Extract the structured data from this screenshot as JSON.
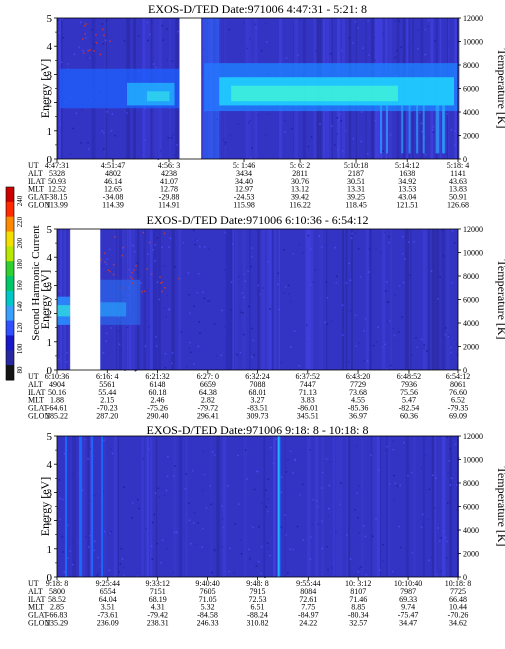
{
  "figure": {
    "colorbar": {
      "label": "Second Harmonic Current",
      "ticks": [
        "240",
        "220",
        "200",
        "180",
        "160",
        "140",
        "120",
        "100",
        "80"
      ],
      "colors": [
        "#cc0000",
        "#ff2a00",
        "#ff8a00",
        "#f4e000",
        "#b8e800",
        "#30d030",
        "#00c86a",
        "#00c8c8",
        "#3aa0ff",
        "#3050ff",
        "#1818c8",
        "#2828a0",
        "#141414"
      ]
    }
  },
  "chart_data": [
    {
      "type": "heatmap",
      "title": "EXOS-D/TED   Date:971006  4:47:31 - 5:21: 8",
      "ylabel": "Energy [eV]",
      "y2label": "Temperature [K]",
      "ylim": [
        0,
        5
      ],
      "y2lim": [
        0,
        12000
      ],
      "yticks": [
        "0",
        "1",
        "2",
        "3",
        "4",
        "5"
      ],
      "y2ticks": [
        "0",
        "2000",
        "4000",
        "6000",
        "8000",
        "10000",
        "12000"
      ],
      "data_gap": {
        "start": "4:56:51",
        "end": "4:58:30"
      },
      "peak_energy_eV": [
        2.2,
        2.5
      ],
      "row_labels": [
        "UT",
        "ALT",
        "ILAT",
        "MLT",
        "GLAT",
        "GLON"
      ],
      "columns": [
        {
          "UT": "4:47:31",
          "ALT": "5328",
          "ILAT": "50.93",
          "MLT": "12.52",
          "GLAT": "-38.15",
          "GLON": "113.99"
        },
        {
          "UT": "4:51:47",
          "ALT": "4802",
          "ILAT": "46.14",
          "MLT": "12.65",
          "GLAT": "-34.08",
          "GLON": "114.39"
        },
        {
          "UT": "4:56: 3",
          "ALT": "4238",
          "ILAT": "41.07",
          "MLT": "12.78",
          "GLAT": "-29.88",
          "GLON": "114.91"
        },
        {
          "UT": "5: 1:46",
          "ALT": "3434",
          "ILAT": "34.40",
          "MLT": "12.97",
          "GLAT": "-24.53",
          "GLON": "115.98"
        },
        {
          "UT": "5: 6: 2",
          "ALT": "2811",
          "ILAT": "30.76",
          "MLT": "13.12",
          "GLAT": "39.42",
          "GLON": "116.22"
        },
        {
          "UT": "5:10:18",
          "ALT": "2187",
          "ILAT": "30.51",
          "MLT": "13.31",
          "GLAT": "39.25",
          "GLON": "118.45"
        },
        {
          "UT": "5:14:12",
          "ALT": "1638",
          "ILAT": "34.92",
          "MLT": "13.53",
          "GLAT": "43.04",
          "GLON": "121.51"
        },
        {
          "UT": "5:18: 4",
          "ALT": "1141",
          "ILAT": "43.63",
          "MLT": "13.83",
          "GLAT": "50.91",
          "GLON": "126.68"
        }
      ]
    },
    {
      "type": "heatmap",
      "title": "EXOS-D/TED   Date:971006  6:10:36 - 6:54:12",
      "ylabel": "Energy [eV]",
      "y2label": "Temperature [K]",
      "ylim": [
        0,
        5
      ],
      "y2lim": [
        0,
        12000
      ],
      "yticks": [
        "0",
        "1",
        "2",
        "3",
        "4",
        "5"
      ],
      "y2ticks": [
        "0",
        "2000",
        "4000",
        "6000",
        "8000",
        "10000",
        "12000"
      ],
      "data_gap": {
        "start": "6:12:02",
        "end": "6:15:18"
      },
      "row_labels": [
        "UT",
        "ALT",
        "ILAT",
        "MLT",
        "GLAT",
        "GLON"
      ],
      "columns": [
        {
          "UT": "6:10:36",
          "ALT": "4904",
          "ILAT": "50.16",
          "MLT": "1.88",
          "GLAT": "-64.61",
          "GLON": "285.22"
        },
        {
          "UT": "6:16: 4",
          "ALT": "5561",
          "ILAT": "55.44",
          "MLT": "2.15",
          "GLAT": "-70.23",
          "GLON": "287.20"
        },
        {
          "UT": "6:21:32",
          "ALT": "6148",
          "ILAT": "60.18",
          "MLT": "2.46",
          "GLAT": "-75.26",
          "GLON": "290.40"
        },
        {
          "UT": "6:27: 0",
          "ALT": "6659",
          "ILAT": "64.38",
          "MLT": "2.82",
          "GLAT": "-79.72",
          "GLON": "296.41"
        },
        {
          "UT": "6:32:24",
          "ALT": "7088",
          "ILAT": "68.01",
          "MLT": "3.27",
          "GLAT": "-83.51",
          "GLON": "309.73"
        },
        {
          "UT": "6:37:52",
          "ALT": "7447",
          "ILAT": "71.13",
          "MLT": "3.83",
          "GLAT": "-86.01",
          "GLON": "345.51"
        },
        {
          "UT": "6:43:20",
          "ALT": "7729",
          "ILAT": "73.68",
          "MLT": "4.55",
          "GLAT": "-85.36",
          "GLON": "36.97"
        },
        {
          "UT": "6:48:52",
          "ALT": "7936",
          "ILAT": "75.56",
          "MLT": "5.47",
          "GLAT": "-82.54",
          "GLON": "60.36"
        },
        {
          "UT": "6:54:12",
          "ALT": "8061",
          "ILAT": "76.60",
          "MLT": "6.52",
          "GLAT": "-79.35",
          "GLON": "69.09"
        }
      ]
    },
    {
      "type": "heatmap",
      "title": "EXOS-D/TED   Date:971006  9:18: 8 - 10:18: 8",
      "ylabel": "Energy [eV]",
      "y2label": "Temperature [K]",
      "ylim": [
        0,
        5
      ],
      "y2lim": [
        0,
        12000
      ],
      "yticks": [
        "0",
        "1",
        "2",
        "3",
        "4",
        "5"
      ],
      "y2ticks": [
        "0",
        "2000",
        "4000",
        "6000",
        "8000",
        "10000",
        "12000"
      ],
      "row_labels": [
        "UT",
        "ALT",
        "ILAT",
        "MLT",
        "GLAT",
        "GLON"
      ],
      "columns": [
        {
          "UT": "9:18: 8",
          "ALT": "5800",
          "ILAT": "58.52",
          "MLT": "2.85",
          "GLAT": "-66.83",
          "GLON": "235.29"
        },
        {
          "UT": "9:25:44",
          "ALT": "6554",
          "ILAT": "64.04",
          "MLT": "3.51",
          "GLAT": "-73.61",
          "GLON": "236.09"
        },
        {
          "UT": "9:33:12",
          "ALT": "7151",
          "ILAT": "68.19",
          "MLT": "4.31",
          "GLAT": "-79.42",
          "GLON": "238.31"
        },
        {
          "UT": "9:40:40",
          "ALT": "7605",
          "ILAT": "71.05",
          "MLT": "5.32",
          "GLAT": "-84.58",
          "GLON": "246.33"
        },
        {
          "UT": "9:48: 8",
          "ALT": "7915",
          "ILAT": "72.53",
          "MLT": "6.51",
          "GLAT": "-88.24",
          "GLON": "310.82"
        },
        {
          "UT": "9:55:44",
          "ALT": "8084",
          "ILAT": "72.61",
          "MLT": "7.75",
          "GLAT": "-84.97",
          "GLON": "24.22"
        },
        {
          "UT": "10: 3:12",
          "ALT": "8107",
          "ILAT": "71.46",
          "MLT": "8.85",
          "GLAT": "-80.34",
          "GLON": "32.57"
        },
        {
          "UT": "10:10:40",
          "ALT": "7987",
          "ILAT": "69.33",
          "MLT": "9.74",
          "GLAT": "-75.47",
          "GLON": "34.47"
        },
        {
          "UT": "10:18: 8",
          "ALT": "7725",
          "ILAT": "66.48",
          "MLT": "10.44",
          "GLAT": "-70.26",
          "GLON": "34.62"
        }
      ]
    }
  ]
}
